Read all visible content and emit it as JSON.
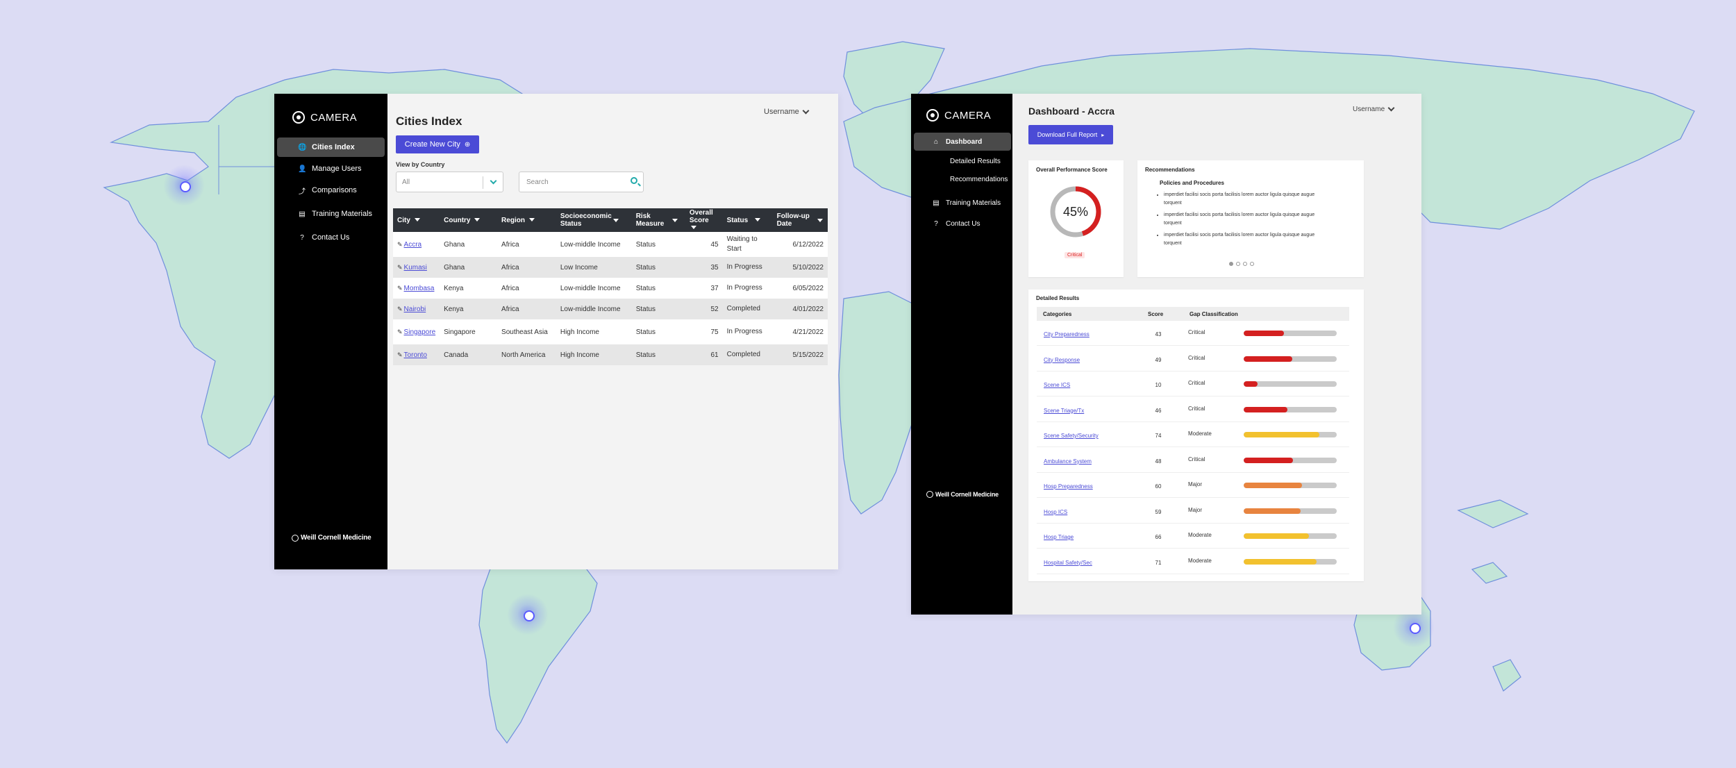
{
  "colors": {
    "background": "#dcdcf4",
    "land": "#c3e5d8",
    "land_stroke": "#6f8fdc",
    "accent": "#4b4bd6",
    "critical": "#d42020",
    "major": "#e8843f",
    "moderate": "#f2c12e",
    "sidebar": "#000000"
  },
  "cities_index": {
    "brand": "CAMERA",
    "nav": [
      {
        "label": "Cities Index",
        "icon": "globe-icon",
        "active": true
      },
      {
        "label": "Manage Users",
        "icon": "user-icon"
      },
      {
        "label": "Comparisons",
        "icon": "chart-icon"
      },
      {
        "label": "Training Materials",
        "icon": "document-icon"
      },
      {
        "label": "Contact Us",
        "icon": "help-icon"
      }
    ],
    "footer_logo": "Weill Cornell Medicine",
    "username": "Username",
    "title": "Cities Index",
    "create_button": "Create New City",
    "filter_label": "View by Country",
    "filter_value": "All",
    "search_placeholder": "Search",
    "columns": [
      "City",
      "Country",
      "Region",
      "Socioeconomic Status",
      "Risk Measure",
      "Overall Score",
      "Status",
      "Follow-up Date"
    ],
    "rows": [
      {
        "city": "Accra",
        "country": "Ghana",
        "region": "Africa",
        "socio": "Low-middle Income",
        "risk": "Status",
        "score": "45",
        "status": "Waiting to Start",
        "date": "6/12/2022"
      },
      {
        "city": "Kumasi",
        "country": "Ghana",
        "region": "Africa",
        "socio": "Low Income",
        "risk": "Status",
        "score": "35",
        "status": "In Progress",
        "date": "5/10/2022"
      },
      {
        "city": "Mombasa",
        "country": "Kenya",
        "region": "Africa",
        "socio": "Low-middle Income",
        "risk": "Status",
        "score": "37",
        "status": "In Progress",
        "date": "6/05/2022"
      },
      {
        "city": "Nairobi",
        "country": "Kenya",
        "region": "Africa",
        "socio": "Low-middle Income",
        "risk": "Status",
        "score": "52",
        "status": "Completed",
        "date": "4/01/2022"
      },
      {
        "city": "Singapore",
        "country": "Singapore",
        "region": "Southeast Asia",
        "socio": "High Income",
        "risk": "Status",
        "score": "75",
        "status": "In Progress",
        "date": "4/21/2022"
      },
      {
        "city": "Toronto",
        "country": "Canada",
        "region": "North America",
        "socio": "High Income",
        "risk": "Status",
        "score": "61",
        "status": "Completed",
        "date": "5/15/2022"
      }
    ]
  },
  "dashboard": {
    "brand": "CAMERA",
    "nav": [
      {
        "label": "Dashboard",
        "icon": "home-icon",
        "active": true
      },
      {
        "label": "Detailed Results",
        "sub": true
      },
      {
        "label": "Recommendations",
        "sub": true
      },
      {
        "label": "Training Materials",
        "icon": "document-icon"
      },
      {
        "label": "Contact Us",
        "icon": "help-icon"
      }
    ],
    "footer_logo": "Weill Cornell Medicine",
    "username": "Username",
    "title": "Dashboard - Accra",
    "download_button": "Download Full Report",
    "score_card": {
      "title": "Overall Performance Score",
      "value": 45,
      "value_text": "45%",
      "badge": "Critical"
    },
    "recommendations": {
      "title": "Recommendations",
      "subtitle": "Policies and Procedures",
      "items": [
        "imperdiet facilisi socis porta facilisis lorem auctor ligula quisque augue torquent",
        "imperdiet facilisi socis porta facilisis lorem auctor ligula quisque augue torquent",
        "imperdiet facilisi socis porta facilisis lorem auctor ligula quisque augue torquent"
      ],
      "page_count": 4,
      "active_page": 1
    },
    "detailed": {
      "title": "Detailed Results",
      "columns": [
        "Categories",
        "Score",
        "Gap Classification"
      ],
      "rows": [
        {
          "category": "City Preparedness",
          "score": 43,
          "gap": "Critical",
          "fill": 0.43
        },
        {
          "category": "City Response",
          "score": 49,
          "gap": "Critical",
          "fill": 0.52
        },
        {
          "category": "Scene ICS",
          "score": 10,
          "gap": "Critical",
          "fill": 0.15
        },
        {
          "category": "Scene Triage/Tx",
          "score": 46,
          "gap": "Critical",
          "fill": 0.47
        },
        {
          "category": "Scene Safety/Security",
          "score": 74,
          "gap": "Moderate",
          "fill": 0.81
        },
        {
          "category": "Ambulance System",
          "score": 48,
          "gap": "Critical",
          "fill": 0.53
        },
        {
          "category": "Hosp Preparedness",
          "score": 60,
          "gap": "Major",
          "fill": 0.63
        },
        {
          "category": "Hosp ICS",
          "score": 59,
          "gap": "Major",
          "fill": 0.61
        },
        {
          "category": "Hosp Triage",
          "score": 66,
          "gap": "Moderate",
          "fill": 0.7
        },
        {
          "category": "Hospital Safety/Sec",
          "score": 71,
          "gap": "Moderate",
          "fill": 0.78
        }
      ]
    }
  }
}
